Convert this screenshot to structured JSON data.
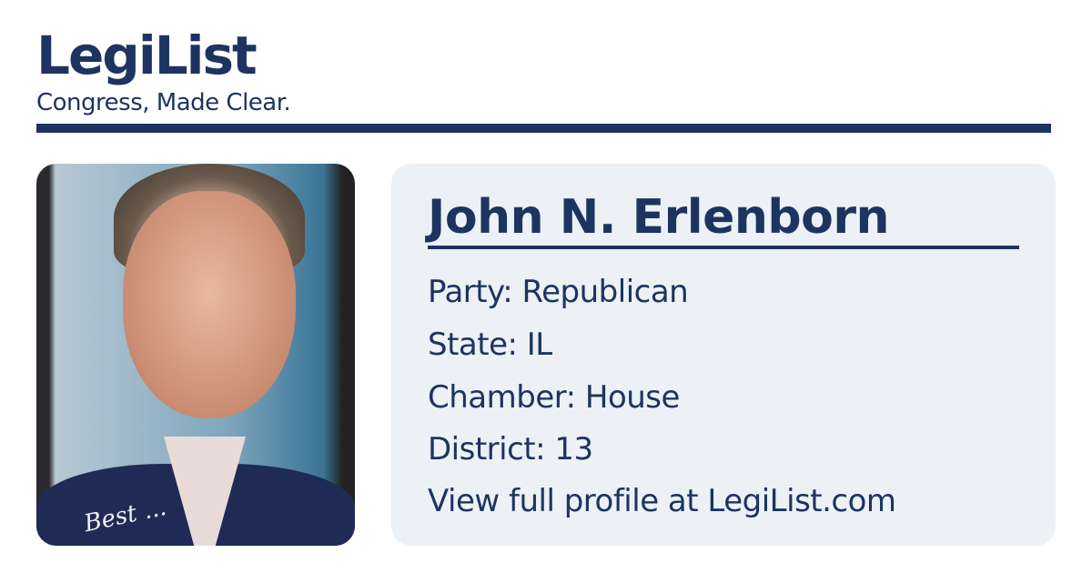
{
  "header": {
    "brand": "LegiList",
    "tagline": "Congress, Made Clear.",
    "accent_color": "#1d3461"
  },
  "member": {
    "photo_signature": "Best ...",
    "name": "John N. Erlenborn",
    "fields": [
      {
        "label": "Party: Republican"
      },
      {
        "label": "State: IL"
      },
      {
        "label": "Chamber: House"
      },
      {
        "label": "District: 13"
      }
    ],
    "profile_link": "View full profile at LegiList.com"
  },
  "card_background": "#ecf1f6"
}
